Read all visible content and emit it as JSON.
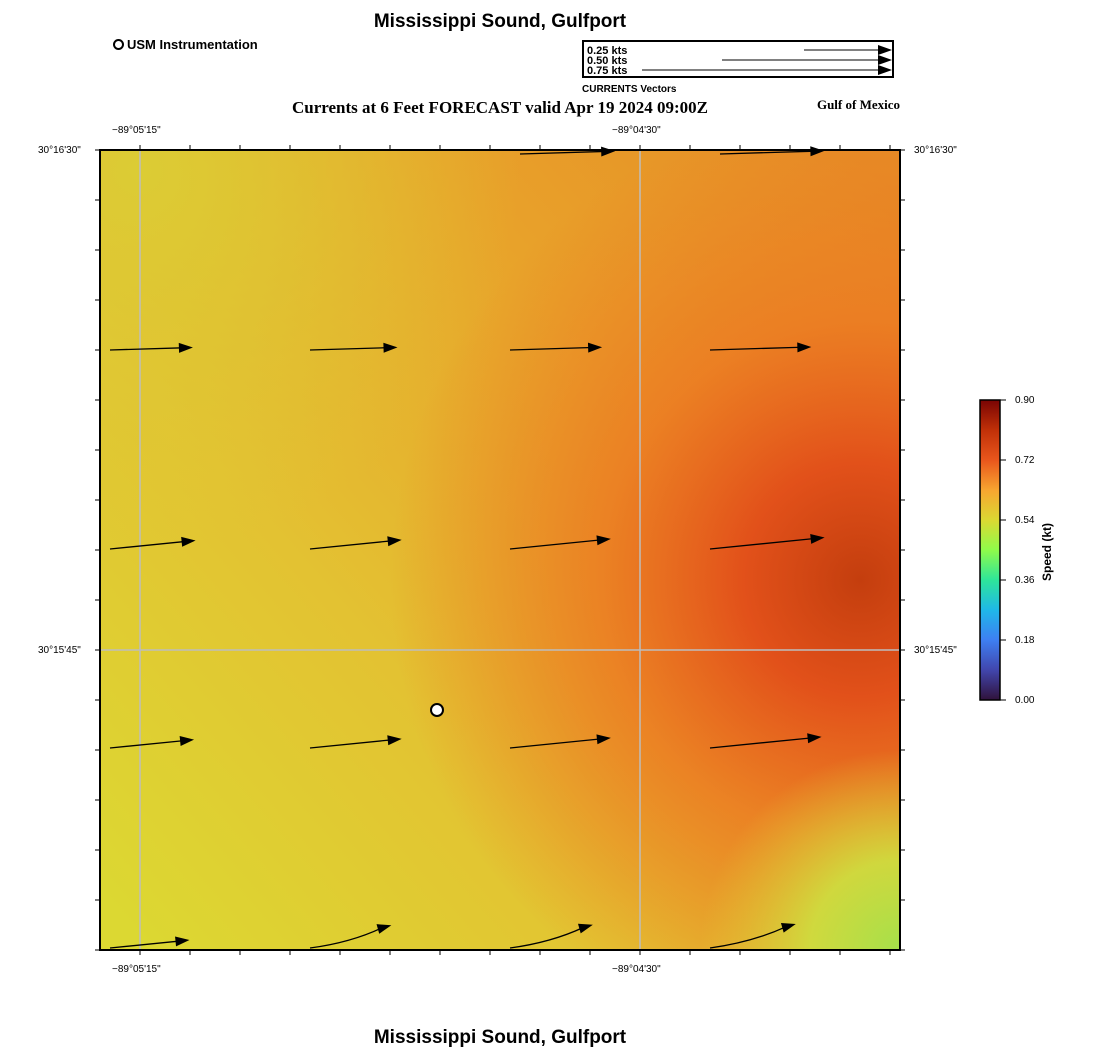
{
  "map": {
    "title_top": "Mississippi Sound, Gulfport",
    "title_bottom": "Mississippi Sound, Gulfport",
    "subtitle": "Currents at 6 Feet FORECAST valid Apr 19 2024 09:00Z",
    "region_label": "Gulf of Mexico",
    "station_legend": "USM Instrumentation",
    "vector_legend": {
      "caption": "CURRENTS Vectors",
      "items": [
        {
          "label": "0.25 kts",
          "speed": 0.25
        },
        {
          "label": "0.50 kts",
          "speed": 0.5
        },
        {
          "label": "0.75 kts",
          "speed": 0.75
        }
      ]
    },
    "longitude_ticks": [
      "−89°05'15\"",
      "−89°04'30\""
    ],
    "latitude_ticks": [
      "30°16'30\"",
      "30°15'45\""
    ],
    "colorbar": {
      "title": "Speed (kt)",
      "ticks": [
        "0.90",
        "0.72",
        "0.54",
        "0.36",
        "0.18",
        "0.00"
      ],
      "min": 0.0,
      "max": 0.9
    },
    "colors": {
      "field_low": "#dcd832",
      "field_mid": "#e8a22a",
      "field_high": "#c43e0e",
      "corner_low_speed": "#a6e04a"
    }
  },
  "chart_data": {
    "type": "vector_field",
    "units": "kt",
    "vectors": [
      {
        "row": 0,
        "col": 2,
        "speed": 0.62,
        "direction": "east"
      },
      {
        "row": 0,
        "col": 3,
        "speed": 0.68,
        "direction": "east"
      },
      {
        "row": 1,
        "col": 0,
        "speed": 0.54,
        "direction": "east"
      },
      {
        "row": 1,
        "col": 1,
        "speed": 0.57,
        "direction": "east"
      },
      {
        "row": 1,
        "col": 2,
        "speed": 0.6,
        "direction": "east"
      },
      {
        "row": 1,
        "col": 3,
        "speed": 0.66,
        "direction": "east"
      },
      {
        "row": 2,
        "col": 0,
        "speed": 0.56,
        "direction": "east-northeast"
      },
      {
        "row": 2,
        "col": 1,
        "speed": 0.6,
        "direction": "east-northeast"
      },
      {
        "row": 2,
        "col": 2,
        "speed": 0.66,
        "direction": "east-northeast"
      },
      {
        "row": 2,
        "col": 3,
        "speed": 0.75,
        "direction": "east-northeast"
      },
      {
        "row": 3,
        "col": 0,
        "speed": 0.55,
        "direction": "east-northeast"
      },
      {
        "row": 3,
        "col": 1,
        "speed": 0.6,
        "direction": "east-northeast"
      },
      {
        "row": 3,
        "col": 2,
        "speed": 0.66,
        "direction": "east-northeast"
      },
      {
        "row": 3,
        "col": 3,
        "speed": 0.73,
        "direction": "east-northeast"
      },
      {
        "row": 4,
        "col": 0,
        "speed": 0.52,
        "direction": "east-northeast"
      },
      {
        "row": 4,
        "col": 1,
        "speed": 0.55,
        "direction": "northeast"
      },
      {
        "row": 4,
        "col": 2,
        "speed": 0.56,
        "direction": "northeast"
      },
      {
        "row": 4,
        "col": 3,
        "speed": 0.58,
        "direction": "northeast"
      }
    ]
  }
}
